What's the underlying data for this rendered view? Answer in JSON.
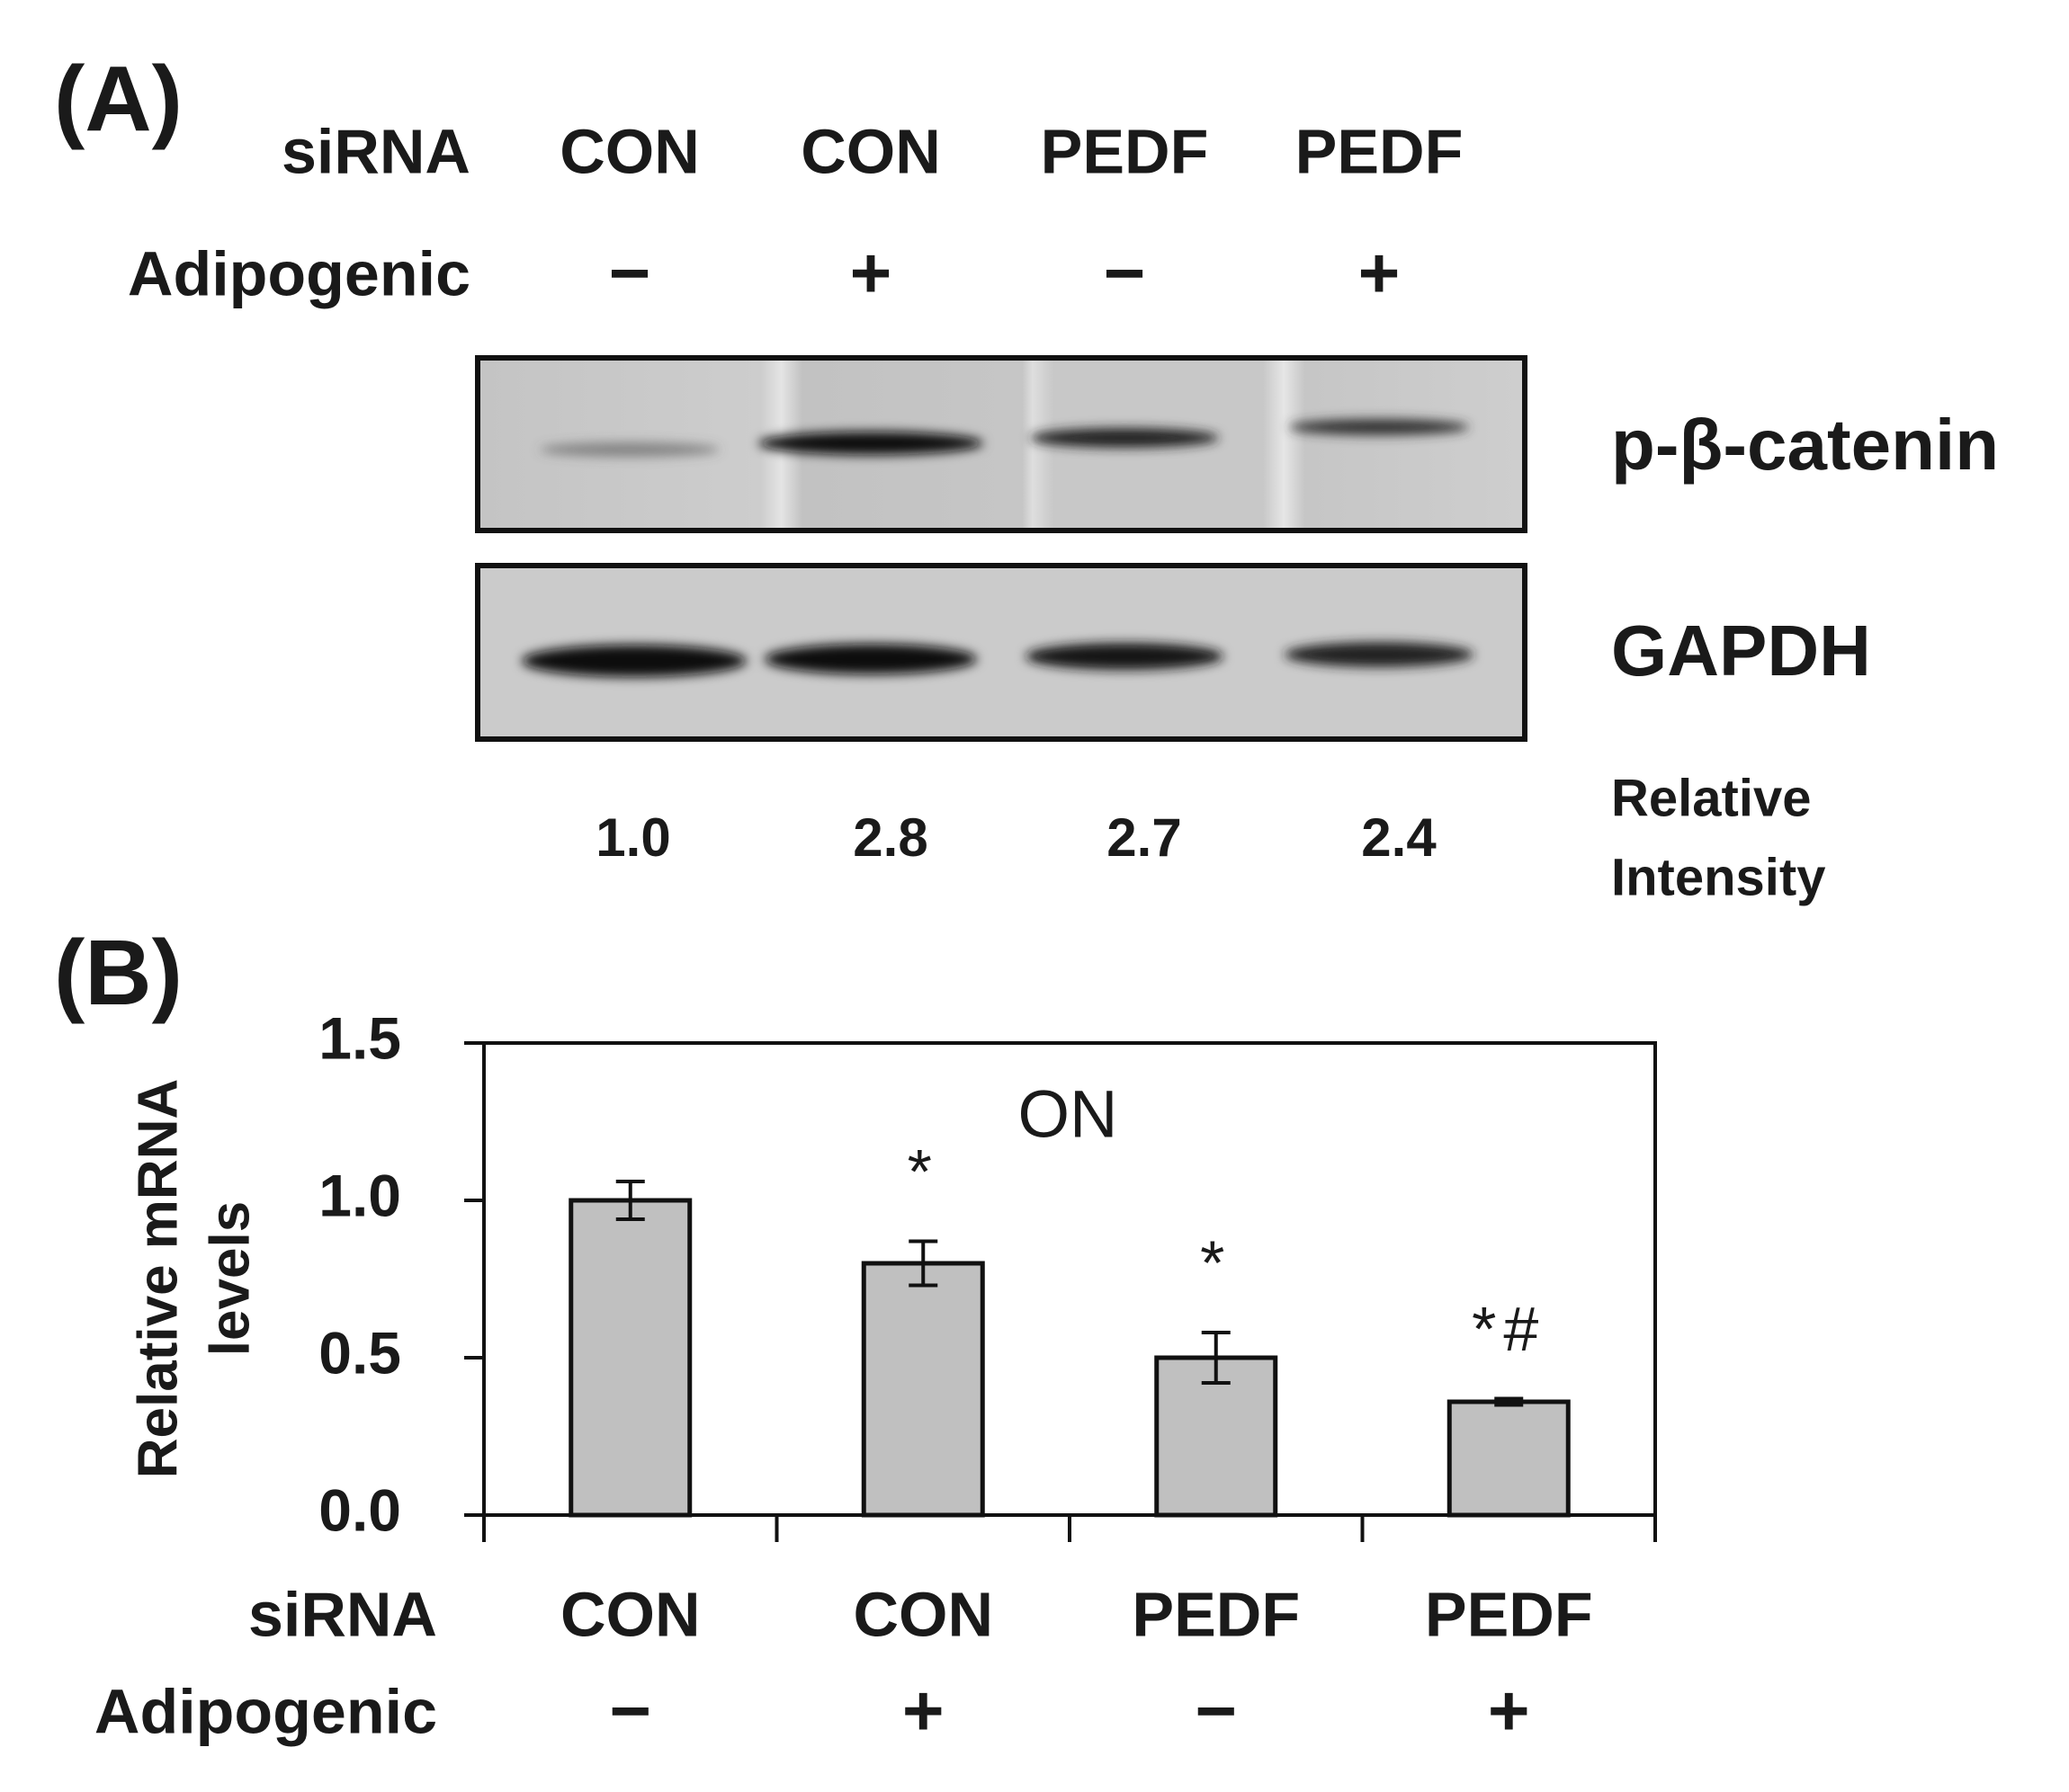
{
  "panel_a": {
    "label": "(A)",
    "row_labels": [
      "siRNA",
      "Adipogenic"
    ],
    "sirna": [
      "CON",
      "CON",
      "PEDF",
      "PEDF"
    ],
    "adipogenic": [
      "−",
      "+",
      "−",
      "+"
    ],
    "blot_labels": [
      "p-β-catenin",
      "GAPDH"
    ],
    "intensity_title": [
      "Relative",
      "Intensity"
    ],
    "intensity": [
      "1.0",
      "2.8",
      "2.7",
      "2.4"
    ]
  },
  "chart_data": {
    "type": "bar",
    "panel_label": "(B)",
    "ylabel": [
      "Relative mRNA",
      "levels"
    ],
    "annotation": "ON",
    "row_labels": [
      "siRNA",
      "Adipogenic"
    ],
    "categories": [
      "CON",
      "CON",
      "PEDF",
      "PEDF"
    ],
    "adipogenic": [
      "−",
      "+",
      "−",
      "+"
    ],
    "series": [
      {
        "values": [
          1.0,
          0.8,
          0.5,
          0.36
        ],
        "errors": [
          0.06,
          0.07,
          0.08,
          0.01
        ],
        "color": "#c0c0c0",
        "sig_labels": [
          "*",
          "*",
          "*#"
        ]
      }
    ],
    "ylim": [
      0,
      1.5
    ],
    "yticks": [
      {
        "value": 0,
        "label": "0.0"
      },
      0.5,
      {
        "value": 1,
        "label": "1.0"
      },
      1.5
    ],
    "grid": false
  }
}
